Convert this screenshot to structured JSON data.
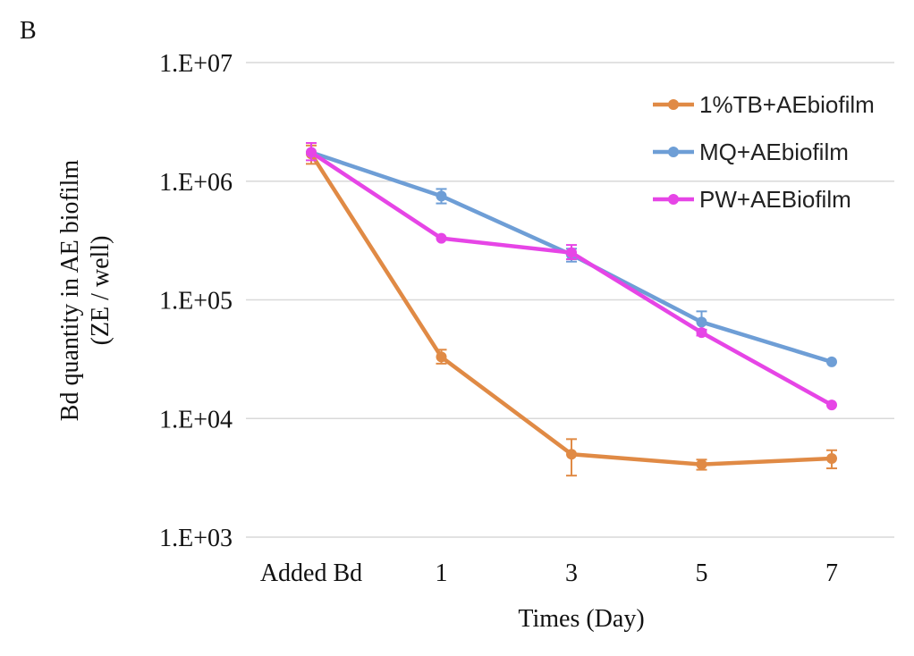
{
  "panel_label": "B",
  "chart_data": {
    "type": "line",
    "title": "",
    "xlabel": "Times (Day)",
    "ylabel": [
      "Bd quantity in AE biofilm",
      "(ZE / well)"
    ],
    "y_scale": "log",
    "ylim": [
      1000,
      10000000
    ],
    "yticks": [
      1000,
      10000,
      100000,
      1000000,
      10000000
    ],
    "ytick_labels": [
      "1.E+03",
      "1.E+04",
      "1.E+05",
      "1.E+06",
      "1.E+07"
    ],
    "categories": [
      "Added Bd",
      "1",
      "3",
      "5",
      "7"
    ],
    "grid": true,
    "legend_position": "top-right",
    "series": [
      {
        "name": "1%TB+AEbiofilm",
        "color": "#E08A45",
        "values": [
          1700000,
          33000,
          5000,
          4100,
          4600
        ],
        "err_low": [
          1400000,
          29000,
          3300,
          3700,
          3800
        ],
        "err_high": [
          2000000,
          38000,
          6700,
          4500,
          5400
        ]
      },
      {
        "name": "MQ+AEbiofilm",
        "color": "#6E9ED6",
        "values": [
          1750000,
          750000,
          240000,
          65000,
          30000
        ],
        "err_low": [
          1750000,
          650000,
          210000,
          56000,
          30000
        ],
        "err_high": [
          1750000,
          860000,
          270000,
          80000,
          30000
        ]
      },
      {
        "name": "PW+AEBiofilm",
        "color": "#E645E6",
        "values": [
          1750000,
          330000,
          250000,
          53000,
          13000
        ],
        "err_low": [
          1500000,
          330000,
          220000,
          50000,
          13000
        ],
        "err_high": [
          2100000,
          330000,
          290000,
          56000,
          13000
        ]
      }
    ]
  }
}
